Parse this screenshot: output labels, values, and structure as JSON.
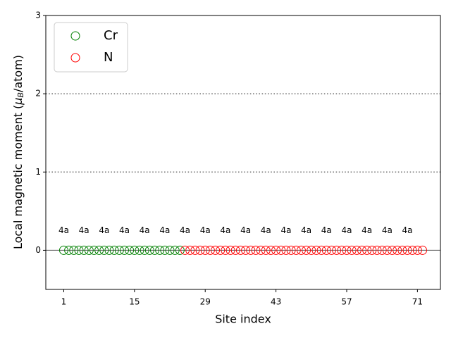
{
  "chart_data": {
    "type": "scatter",
    "xlabel": "Site index",
    "ylabel": {
      "prefix": "Local magnetic moment (",
      "symbol": "μ",
      "subscript": "B",
      "suffix": "/atom)"
    },
    "xlim": [
      -2.55,
      75.55
    ],
    "ylim": [
      -0.5,
      3
    ],
    "xticks": [
      1,
      15,
      29,
      43,
      57,
      71
    ],
    "yticks": [
      0,
      1,
      2,
      3
    ],
    "legend": "upper left",
    "reference_lines": [
      {
        "value": 0,
        "style": "solid"
      },
      {
        "value": 1,
        "style": "dotted"
      },
      {
        "value": 2,
        "style": "dotted"
      }
    ],
    "series": [
      {
        "name": "Cr",
        "color": "#008000",
        "x": [
          1,
          2,
          3,
          4,
          5,
          6,
          7,
          8,
          9,
          10,
          11,
          12,
          13,
          14,
          15,
          16,
          17,
          18,
          19,
          20,
          21,
          22,
          23,
          24
        ],
        "values": [
          0,
          0,
          0,
          0,
          0,
          0,
          0,
          0,
          0,
          0,
          0,
          0,
          0,
          0,
          0,
          0,
          0,
          0,
          0,
          0,
          0,
          0,
          0,
          0
        ]
      },
      {
        "name": "N",
        "color": "#ff0000",
        "x": [
          25,
          26,
          27,
          28,
          29,
          30,
          31,
          32,
          33,
          34,
          35,
          36,
          37,
          38,
          39,
          40,
          41,
          42,
          43,
          44,
          45,
          46,
          47,
          48,
          49,
          50,
          51,
          52,
          53,
          54,
          55,
          56,
          57,
          58,
          59,
          60,
          61,
          62,
          63,
          64,
          65,
          66,
          67,
          68,
          69,
          70,
          71,
          72
        ],
        "values": [
          0,
          0,
          0,
          0,
          0,
          0,
          0,
          0,
          0,
          0,
          0,
          0,
          0,
          0,
          0,
          0,
          0,
          0,
          0,
          0,
          0,
          0,
          0,
          0,
          0,
          0,
          0,
          0,
          0,
          0,
          0,
          0,
          0,
          0,
          0,
          0,
          0,
          0,
          0,
          0,
          0,
          0,
          0,
          0,
          0,
          0,
          0,
          0
        ]
      }
    ],
    "annotations": [
      {
        "text": "4a",
        "x": 1,
        "y": 0.25
      },
      {
        "text": "4a",
        "x": 5,
        "y": 0.25
      },
      {
        "text": "4a",
        "x": 9,
        "y": 0.25
      },
      {
        "text": "4a",
        "x": 13,
        "y": 0.25
      },
      {
        "text": "4a",
        "x": 17,
        "y": 0.25
      },
      {
        "text": "4a",
        "x": 21,
        "y": 0.25
      },
      {
        "text": "4a",
        "x": 25,
        "y": 0.25
      },
      {
        "text": "4a",
        "x": 29,
        "y": 0.25
      },
      {
        "text": "4a",
        "x": 33,
        "y": 0.25
      },
      {
        "text": "4a",
        "x": 37,
        "y": 0.25
      },
      {
        "text": "4a",
        "x": 41,
        "y": 0.25
      },
      {
        "text": "4a",
        "x": 45,
        "y": 0.25
      },
      {
        "text": "4a",
        "x": 49,
        "y": 0.25
      },
      {
        "text": "4a",
        "x": 53,
        "y": 0.25
      },
      {
        "text": "4a",
        "x": 57,
        "y": 0.25
      },
      {
        "text": "4a",
        "x": 61,
        "y": 0.25
      },
      {
        "text": "4a",
        "x": 65,
        "y": 0.25
      },
      {
        "text": "4a",
        "x": 69,
        "y": 0.25
      }
    ]
  }
}
